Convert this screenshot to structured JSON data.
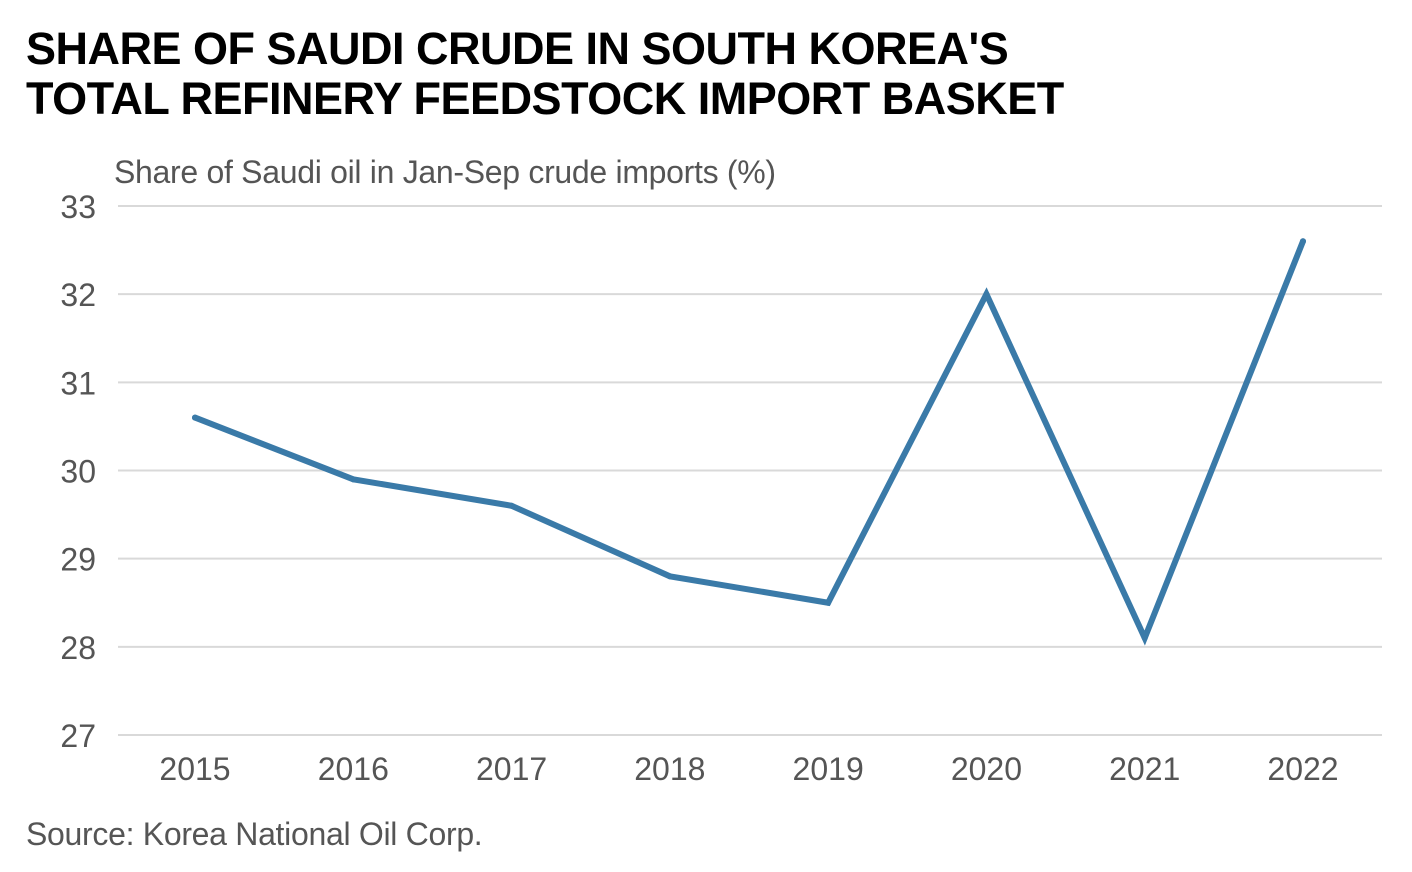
{
  "title_lines": [
    "SHARE OF SAUDI CRUDE IN SOUTH KOREA'S",
    "TOTAL REFINERY FEEDSTOCK IMPORT BASKET"
  ],
  "source": "Source: Korea National Oil Corp.",
  "colors": {
    "series": "#3a7aa8",
    "grid": "#d9d9d9",
    "label": "#555555"
  },
  "chart_data": {
    "type": "line",
    "title": "SHARE OF SAUDI CRUDE IN SOUTH KOREA'S TOTAL REFINERY FEEDSTOCK IMPORT BASKET",
    "xlabel": "",
    "ylabel": "Share of Saudi oil in Jan-Sep crude imports (%)",
    "categories": [
      "2015",
      "2016",
      "2017",
      "2018",
      "2019",
      "2020",
      "2021",
      "2022"
    ],
    "series": [
      {
        "name": "Share of Saudi oil",
        "values": [
          30.6,
          29.9,
          29.6,
          28.8,
          28.5,
          32.0,
          28.1,
          32.6
        ]
      }
    ],
    "ylim": [
      27,
      33
    ],
    "yticks": [
      "27",
      "28",
      "29",
      "30",
      "31",
      "32",
      "33"
    ],
    "grid": true,
    "legend": "none"
  }
}
